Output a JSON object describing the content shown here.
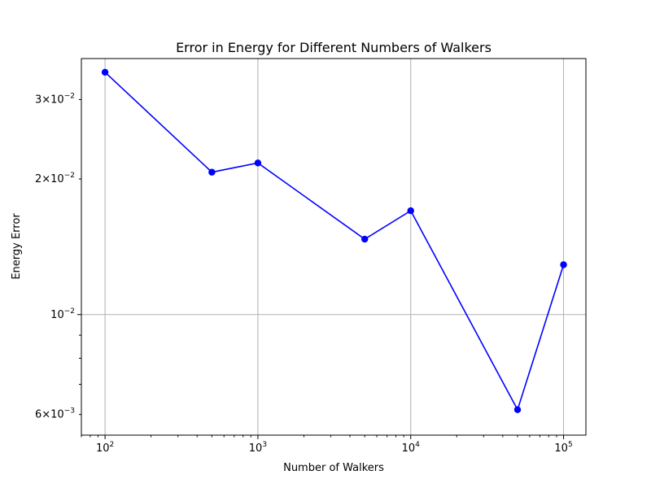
{
  "chart_data": {
    "type": "line",
    "title": "Error in Energy for Different Numbers of Walkers",
    "xlabel": "Number of Walkers",
    "ylabel": "Energy Error",
    "xscale": "log",
    "yscale": "log",
    "xlim": [
      70,
      140000
    ],
    "ylim": [
      0.0054,
      0.037
    ],
    "grid": true,
    "series": [
      {
        "color": "#0000ff",
        "marker": "circle",
        "x": [
          100,
          500,
          1000,
          5000,
          10000,
          50000,
          100000
        ],
        "y": [
          0.0345,
          0.0207,
          0.0217,
          0.0147,
          0.017,
          0.00615,
          0.0129
        ]
      }
    ],
    "xticks": [
      {
        "value": 100,
        "base": "10",
        "exp": "2"
      },
      {
        "value": 1000,
        "base": "10",
        "exp": "3"
      },
      {
        "value": 10000,
        "base": "10",
        "exp": "4"
      },
      {
        "value": 100000,
        "base": "10",
        "exp": "5"
      }
    ],
    "yticks": [
      {
        "value": 0.006,
        "mant": "6",
        "base": "10",
        "exp": "−3"
      },
      {
        "value": 0.01,
        "mant": "",
        "base": "10",
        "exp": "−2"
      },
      {
        "value": 0.02,
        "mant": "2",
        "base": "10",
        "exp": "−2"
      },
      {
        "value": 0.03,
        "mant": "3",
        "base": "10",
        "exp": "−2"
      }
    ]
  }
}
